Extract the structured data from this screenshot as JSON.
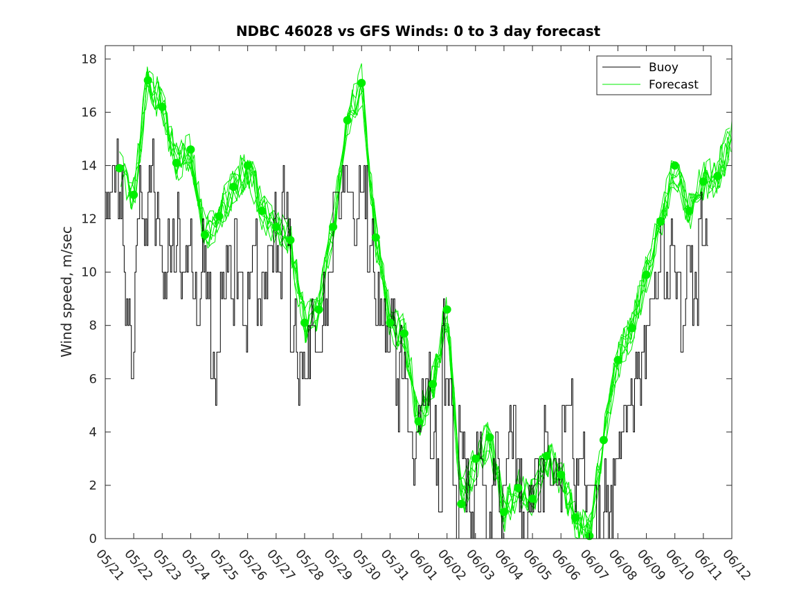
{
  "chart_data": {
    "type": "line",
    "title": "NDBC 46028 vs GFS Winds: 0 to 3 day forecast",
    "xlabel": "",
    "ylabel": "Wind speed, m/sec",
    "x_ticks": [
      "05/21",
      "05/22",
      "05/23",
      "05/24",
      "05/25",
      "05/26",
      "05/27",
      "05/28",
      "05/29",
      "05/30",
      "05/31",
      "06/01",
      "06/02",
      "06/03",
      "06/04",
      "06/05",
      "06/06",
      "06/07",
      "06/08",
      "06/09",
      "06/10",
      "06/11",
      "06/12"
    ],
    "xlim": [
      "05/21",
      "06/12"
    ],
    "ylim": [
      0,
      18.5
    ],
    "y_ticks": [
      0,
      2,
      4,
      6,
      8,
      10,
      12,
      14,
      16,
      18
    ],
    "grid": false,
    "legend_position": "top-right",
    "colors": {
      "buoy": "#000000",
      "forecast": "#00ee00",
      "axis": "#262626"
    },
    "series": [
      {
        "name": "Buoy",
        "style": "stairs",
        "day": [
          0,
          0.3,
          0.45,
          0.6,
          0.7,
          0.9,
          1.0,
          1.1,
          1.3,
          1.5,
          1.7,
          1.9,
          2.0,
          2.2,
          2.4,
          2.5,
          2.6,
          2.8,
          3.0,
          3.1,
          3.2,
          3.35,
          3.5,
          3.7,
          3.8,
          3.9,
          4.0,
          4.2,
          4.3,
          4.4,
          4.5,
          4.6,
          4.8,
          5.0,
          5.2,
          5.3,
          5.5,
          5.7,
          5.9,
          6.0,
          6.2,
          6.35,
          6.5,
          6.7,
          6.8,
          6.9,
          7.0,
          7.2,
          7.4,
          7.6,
          7.8,
          8.0,
          8.2,
          8.3,
          8.5,
          8.7,
          8.9,
          9.0,
          9.2,
          9.4,
          9.5,
          9.7,
          9.9,
          10.0,
          10.2,
          10.3,
          10.4,
          10.6,
          10.8,
          10.9,
          11.0,
          11.2,
          11.4,
          11.6,
          11.8,
          11.9,
          12.0,
          12.2,
          12.3,
          12.4,
          12.5,
          12.6,
          12.8,
          13.0,
          13.2,
          13.35,
          13.5,
          13.6,
          13.8,
          13.9,
          14.0,
          14.2,
          14.4,
          14.6,
          14.8,
          15.0,
          15.2,
          15.4,
          15.6,
          15.8,
          16.0,
          16.2,
          16.4,
          16.6,
          16.8,
          17.0,
          17.2,
          17.4,
          17.5,
          17.6,
          17.8,
          18.0,
          18.2,
          18.4,
          18.6,
          18.8,
          19.0,
          19.2,
          19.4,
          19.5,
          19.6,
          19.8,
          20.0,
          20.2,
          20.4,
          20.6,
          20.8,
          21.0,
          21.2
        ],
        "values": [
          13,
          14,
          13,
          11,
          8,
          7,
          11,
          13,
          12,
          14,
          12,
          11,
          10,
          11,
          10,
          12,
          10,
          11,
          9,
          10,
          8,
          11,
          9,
          6,
          5,
          7,
          9,
          10,
          11,
          9,
          12,
          10,
          8,
          10,
          11,
          8,
          10,
          11,
          12,
          10,
          13,
          12,
          8,
          6,
          7,
          6,
          7,
          8,
          7,
          9,
          11,
          13,
          12,
          14,
          13,
          12,
          14,
          13,
          11,
          10,
          9,
          8,
          7,
          9,
          5,
          7,
          6,
          4,
          2,
          4,
          5,
          6,
          4,
          2,
          8,
          5,
          6,
          1,
          0,
          5,
          3,
          2,
          1,
          4,
          2,
          0,
          1,
          3,
          2,
          1,
          3,
          4,
          2,
          0,
          1,
          3,
          2,
          4,
          3,
          2,
          4,
          5,
          2,
          3,
          1,
          2,
          1,
          0,
          2,
          1,
          3,
          4,
          5,
          5,
          6,
          7,
          8,
          9,
          10,
          11,
          9,
          12,
          10,
          8,
          11,
          9,
          12,
          11,
          10
        ]
      },
      {
        "name": "Forecast",
        "day": [
          0.5,
          1.0,
          1.5,
          2.0,
          2.5,
          3.0,
          3.5,
          4.0,
          4.5,
          5.0,
          5.5,
          6.0,
          6.5,
          7.0,
          7.5,
          8.0,
          8.5,
          9.0,
          9.5,
          10.0,
          10.5,
          11.0,
          11.5,
          12.0,
          12.5,
          13.0,
          13.5,
          14.0,
          14.5,
          15.0,
          15.5,
          16.0,
          16.5,
          17.0,
          17.5,
          18.0,
          18.5,
          19.0,
          19.5,
          20.0,
          20.5,
          21.0,
          21.5,
          22.0
        ],
        "values": [
          13.9,
          12.9,
          17.2,
          16.2,
          14.1,
          14.6,
          11.4,
          12.1,
          13.2,
          14.0,
          12.3,
          11.7,
          11.2,
          8.1,
          8.6,
          11.7,
          15.7,
          17.1,
          11.3,
          8.1,
          7.7,
          4.4,
          5.8,
          8.6,
          1.3,
          3.0,
          3.8,
          1.0,
          1.9,
          1.5,
          3.1,
          2.4,
          0.8,
          0.1,
          3.7,
          6.7,
          7.9,
          9.9,
          11.9,
          14.0,
          12.3,
          13.4,
          13.6,
          15.2
        ],
        "markers": true
      }
    ]
  }
}
